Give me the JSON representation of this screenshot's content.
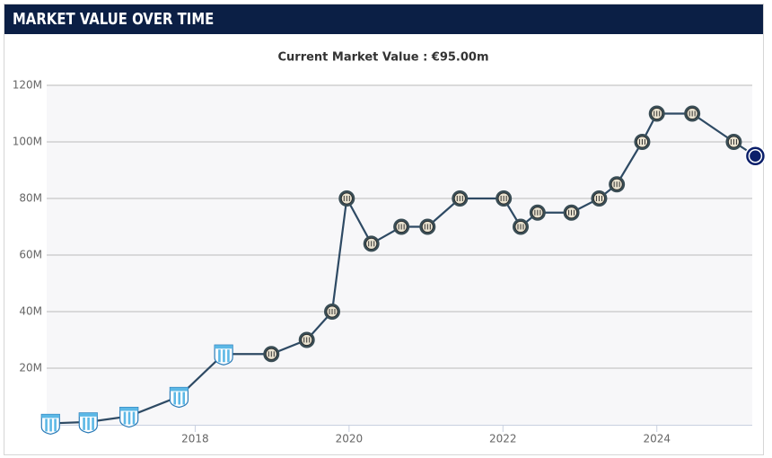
{
  "chart_data": {
    "type": "line",
    "title": "MARKET VALUE OVER TIME",
    "subtitle": "Current Market Value : €95.00m",
    "x": [
      2016.12,
      2016.61,
      2017.14,
      2017.79,
      2018.37,
      2018.99,
      2019.45,
      2019.78,
      2019.97,
      2020.29,
      2020.68,
      2021.02,
      2021.44,
      2022.01,
      2022.23,
      2022.45,
      2022.89,
      2023.25,
      2023.48,
      2023.81,
      2024.0,
      2024.46,
      2025.0,
      2025.28
    ],
    "values": [
      0.5,
      1,
      3,
      10,
      25,
      25,
      30,
      40,
      80,
      64,
      70,
      70,
      80,
      80,
      70,
      75,
      75,
      80,
      85,
      100,
      110,
      110,
      100,
      95
    ],
    "color": "#2e4a64",
    "xlim": [
      2016.07,
      2025.24
    ],
    "xticks": [
      2018,
      2020,
      2022,
      2024
    ],
    "ylim": [
      0,
      120
    ],
    "yticks": [
      {
        "value": 20,
        "label": "20M"
      },
      {
        "value": 40,
        "label": "40M"
      },
      {
        "value": 60,
        "label": "60M"
      },
      {
        "value": 80,
        "label": "80M"
      },
      {
        "value": 100,
        "label": "100M"
      },
      {
        "value": 120,
        "label": "120M"
      }
    ],
    "grid": true
  }
}
